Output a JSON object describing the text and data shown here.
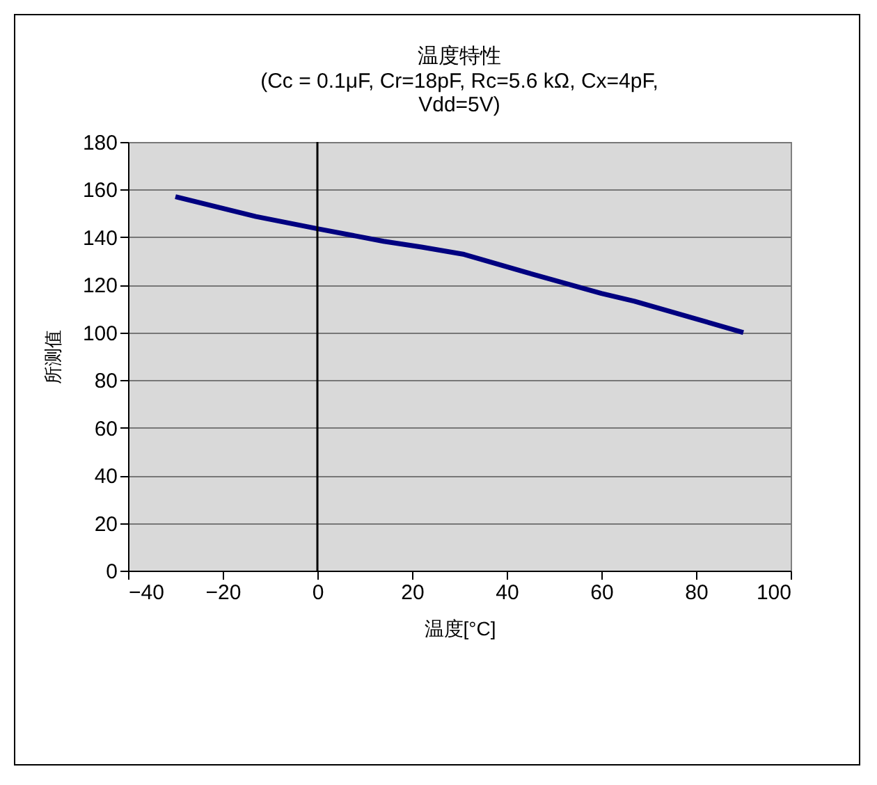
{
  "chart_data": {
    "type": "line",
    "title": "温度特性",
    "subtitle": "(Cc = 0.1μF, Cr=18pF, Rc=5.6 kΩ, Cx=4pF,\nVdd=5V)",
    "xlabel": "温度[°C]",
    "ylabel": "所测值",
    "x": [
      -30,
      -13,
      0,
      14,
      22,
      31,
      44,
      60,
      67,
      90
    ],
    "series": [
      {
        "color": "#000080",
        "values": [
          157,
          148.7,
          143.6,
          138.3,
          135.9,
          132.8,
          125.3,
          116.4,
          113.1,
          100
        ]
      }
    ],
    "xlim": [
      -40,
      100
    ],
    "xticks": [
      -40,
      -20,
      0,
      20,
      40,
      60,
      80,
      100
    ],
    "ylim": [
      0,
      180
    ],
    "yticks": [
      0,
      20,
      40,
      60,
      80,
      100,
      120,
      140,
      160,
      180
    ],
    "grid": "y",
    "marker": "none",
    "line_style": "solid"
  }
}
